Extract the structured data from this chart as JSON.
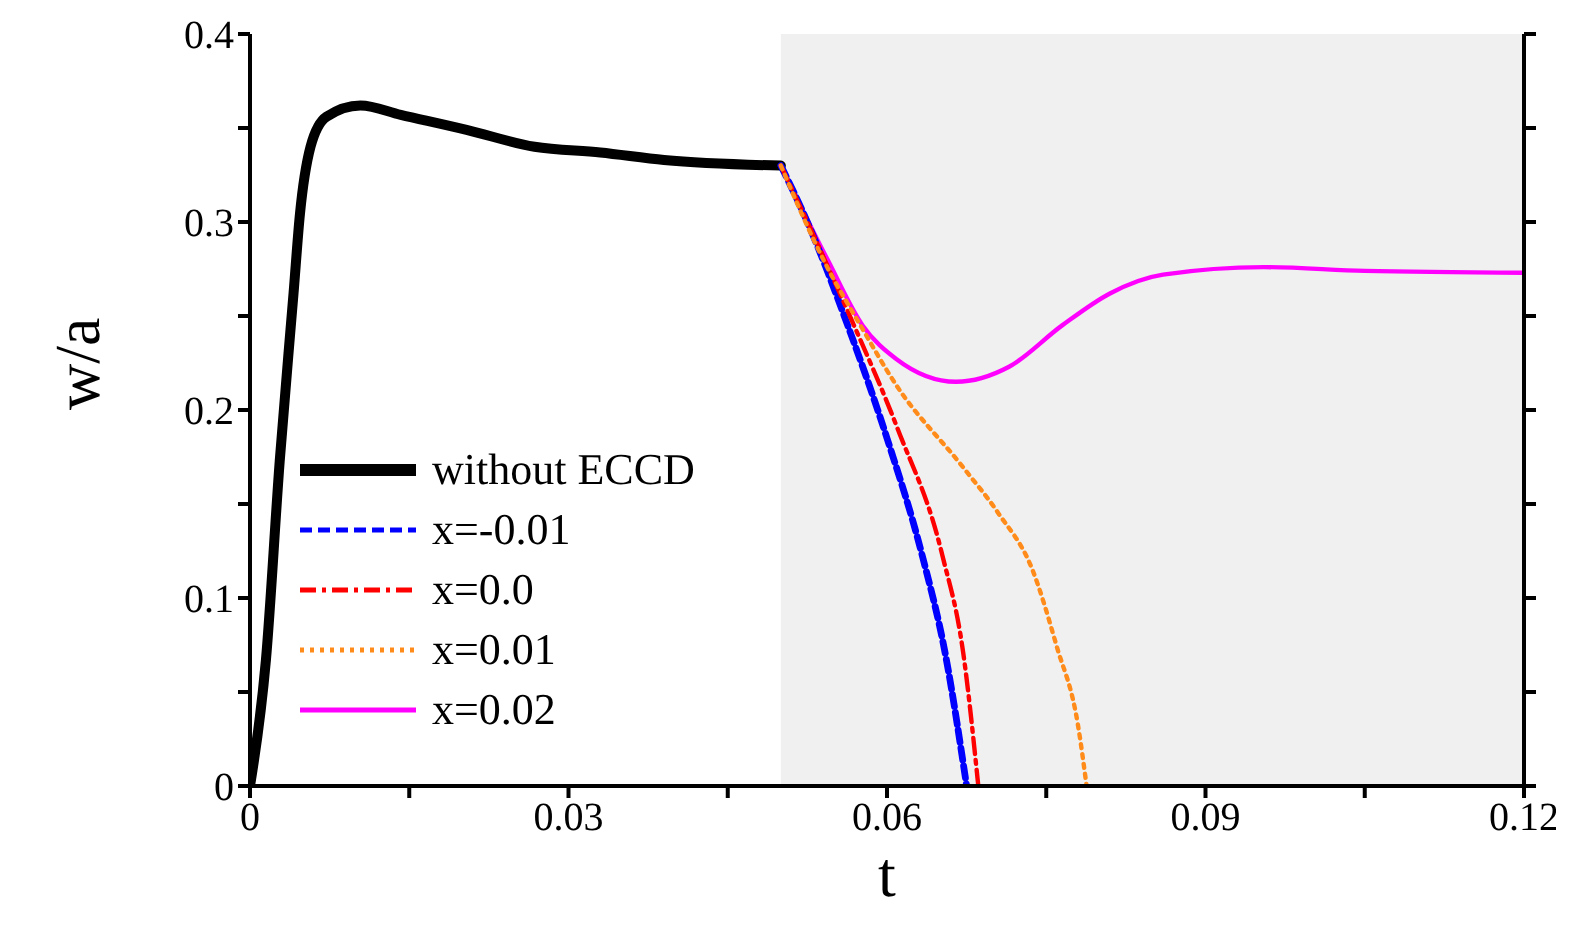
{
  "chart_data": {
    "type": "line",
    "xlabel": "t",
    "ylabel": "w/a",
    "xlim": [
      0,
      0.12
    ],
    "ylim": [
      0,
      0.4
    ],
    "xticks": [
      0,
      {
        "value": 0.015,
        "label": null
      },
      0.03,
      {
        "value": 0.045,
        "label": null
      },
      0.06,
      {
        "value": 0.075,
        "label": null
      },
      0.09,
      {
        "value": 0.105,
        "label": null
      },
      0.12
    ],
    "yticks": [
      0,
      {
        "value": 0.05,
        "label": null
      },
      0.1,
      {
        "value": 0.15,
        "label": null
      },
      0.2,
      {
        "value": 0.25,
        "label": null
      },
      0.3,
      {
        "value": 0.35,
        "label": null
      },
      0.4
    ],
    "legend": "bottom left",
    "marker": "none",
    "bands": [
      {
        "axis": "x",
        "from": 0.05,
        "to": 0.12,
        "color": "#f0f0f0"
      }
    ],
    "series": [
      {
        "name": "without ECCD",
        "color": "#000000",
        "line_style": "solid",
        "x": [
          0,
          0.0015,
          0.0028,
          0.0041,
          0.0047,
          0.0057,
          0.0072,
          0.0104,
          0.0142,
          0.0204,
          0.0268,
          0.033,
          0.039,
          0.05
        ],
        "values": [
          0,
          0.067,
          0.173,
          0.262,
          0.304,
          0.34,
          0.356,
          0.362,
          0.357,
          0.349,
          0.34,
          0.337,
          0.333,
          0.33
        ]
      },
      {
        "name": "x=-0.01",
        "color": "#0000ff",
        "line_style": "dashed",
        "x": [
          0.05,
          0.0525,
          0.0563,
          0.06,
          0.0633,
          0.0655,
          0.0675
        ],
        "values": [
          0.33,
          0.3,
          0.245,
          0.185,
          0.123,
          0.07,
          0
        ]
      },
      {
        "name": "x=0.0",
        "color": "#ff0000",
        "line_style": "dashdot",
        "x": [
          0.05,
          0.0525,
          0.0565,
          0.061,
          0.0652,
          0.0672,
          0.0686
        ],
        "values": [
          0.33,
          0.3,
          0.25,
          0.19,
          0.123,
          0.07,
          0
        ]
      },
      {
        "name": "x=0.01",
        "color": "#ff8c1a",
        "line_style": "dotted",
        "x": [
          0.05,
          0.054,
          0.0575,
          0.0609,
          0.0671,
          0.0705,
          0.0737,
          0.076,
          0.078,
          0.0788
        ],
        "values": [
          0.33,
          0.28,
          0.245,
          0.213,
          0.17,
          0.145,
          0.115,
          0.074,
          0.032,
          0
        ]
      },
      {
        "name": "x=0.02",
        "color": "#ff00ff",
        "line_style": "solid",
        "x": [
          0.05,
          0.0544,
          0.0577,
          0.0609,
          0.0665,
          0.0715,
          0.0765,
          0.081,
          0.086,
          0.0955,
          0.105,
          0.12
        ],
        "values": [
          0.33,
          0.28,
          0.245,
          0.227,
          0.215,
          0.223,
          0.245,
          0.262,
          0.272,
          0.276,
          0.274,
          0.273
        ]
      }
    ]
  }
}
